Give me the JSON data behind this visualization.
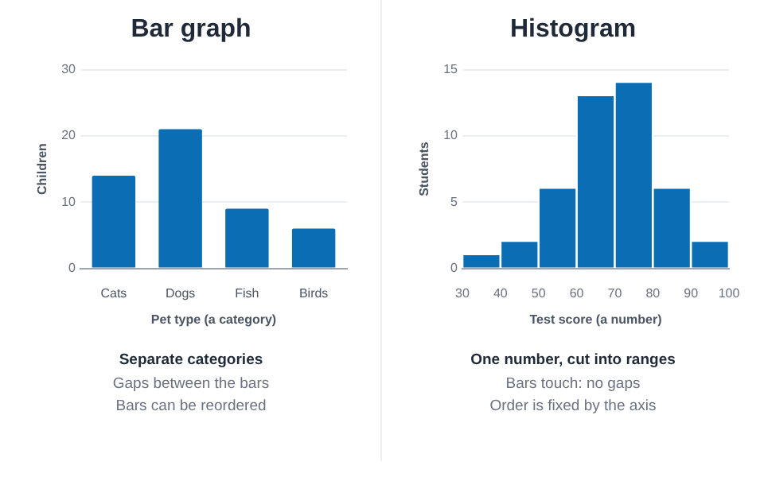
{
  "chart_data": [
    {
      "type": "bar",
      "title": "Bar graph",
      "xlabel": "Pet type (a category)",
      "ylabel": "Children",
      "categories": [
        "Cats",
        "Dogs",
        "Fish",
        "Birds"
      ],
      "values": [
        14,
        21,
        9,
        6
      ],
      "color": "#0b6db3",
      "ylim": [
        0,
        30
      ],
      "yticks": [
        0,
        10,
        20,
        30
      ],
      "grid": "y",
      "legend": false,
      "annotations": [
        "Separate categories",
        "Gaps between the bars",
        "Bars can be reordered"
      ]
    },
    {
      "type": "histogram",
      "title": "Histogram",
      "xlabel": "Test score (a number)",
      "ylabel": "Students",
      "bins": [
        30,
        40,
        50,
        60,
        70,
        80,
        90,
        100
      ],
      "values": [
        1,
        2,
        6,
        13,
        14,
        6,
        2
      ],
      "color": "#0b6db3",
      "xlim": [
        30,
        100
      ],
      "xticks": [
        30,
        40,
        50,
        60,
        70,
        80,
        90,
        100
      ],
      "ylim": [
        0,
        15
      ],
      "yticks": [
        0,
        5,
        10,
        15
      ],
      "grid": "y",
      "legend": false,
      "annotations": [
        "One number, cut into ranges",
        "Bars touch: no gaps",
        "Order is fixed by the axis"
      ]
    }
  ]
}
